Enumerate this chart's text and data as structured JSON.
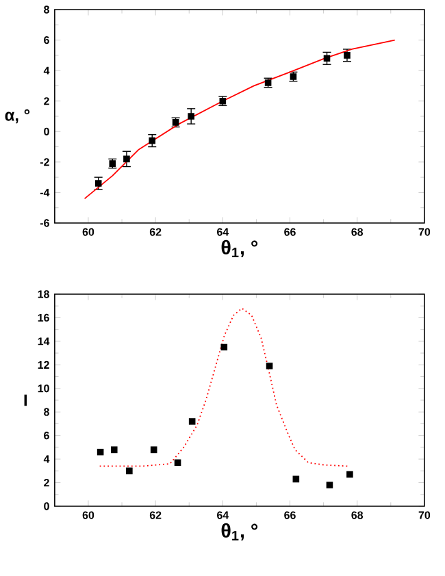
{
  "chart_data": [
    {
      "type": "scatter",
      "xlabel": "θ$_{1}$, °",
      "ylabel": "α, °",
      "xlim": [
        59,
        70
      ],
      "ylim": [
        -6,
        8
      ],
      "xticks": [
        60,
        62,
        64,
        66,
        68,
        70
      ],
      "yticks": [
        -6,
        -4,
        -2,
        0,
        2,
        4,
        6,
        8
      ],
      "marker": "square",
      "series": [
        {
          "color": "#000000",
          "x": [
            60.3,
            60.72,
            61.14,
            61.9,
            62.6,
            63.06,
            64.0,
            65.35,
            66.1,
            67.1,
            67.7
          ],
          "values": [
            -3.4,
            -2.1,
            -1.8,
            -0.6,
            0.6,
            1.0,
            2.0,
            3.2,
            3.6,
            4.8,
            5.0
          ],
          "errors": [
            0.4,
            0.3,
            0.5,
            0.4,
            0.3,
            0.5,
            0.3,
            0.3,
            0.3,
            0.4,
            0.4
          ]
        },
        {
          "type": "line",
          "color": "#ff0000",
          "marker": "none",
          "line_style": "solid",
          "x": [
            59.89,
            60.72,
            61.49,
            62.7,
            64.0,
            64.93,
            66.0,
            67.03,
            67.84,
            69.12
          ],
          "values": [
            -4.4,
            -2.9,
            -1.2,
            0.5,
            2.0,
            3.0,
            3.9,
            4.8,
            5.4,
            6.0
          ]
        }
      ]
    },
    {
      "type": "scatter",
      "xlabel": "θ$_{1}$, °",
      "ylabel": "I",
      "xlim": [
        59,
        70
      ],
      "ylim": [
        0,
        18
      ],
      "xticks": [
        60,
        62,
        64,
        66,
        68,
        70
      ],
      "yticks": [
        0,
        2,
        4,
        6,
        8,
        10,
        12,
        14,
        16,
        18
      ],
      "marker": "square",
      "series": [
        {
          "color": "#000000",
          "x": [
            60.36,
            60.77,
            61.22,
            61.95,
            62.66,
            63.09,
            64.04,
            65.39,
            66.18,
            67.18,
            67.78
          ],
          "values": [
            4.6,
            4.8,
            3.0,
            4.8,
            3.7,
            7.2,
            13.5,
            11.9,
            2.3,
            1.8,
            2.7
          ]
        },
        {
          "type": "line",
          "color": "#ff0000",
          "marker": "none",
          "line_style": "dotted",
          "x": [
            60.34,
            61.62,
            62.43,
            62.84,
            63.24,
            63.51,
            63.78,
            64.05,
            64.32,
            64.57,
            64.86,
            65.14,
            65.34,
            65.6,
            65.95,
            66.15,
            66.55,
            67.03,
            67.73
          ],
          "values": [
            3.4,
            3.4,
            3.6,
            5.0,
            6.9,
            9.1,
            11.8,
            14.5,
            16.2,
            16.8,
            16.2,
            14.3,
            11.9,
            8.6,
            6.1,
            4.8,
            3.7,
            3.5,
            3.4
          ]
        }
      ]
    }
  ]
}
